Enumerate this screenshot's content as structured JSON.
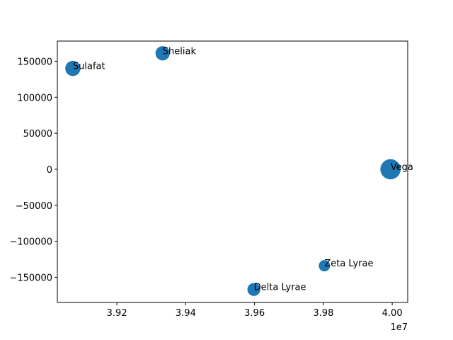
{
  "chart_data": {
    "type": "scatter",
    "title": "",
    "xlabel": "",
    "ylabel": "",
    "x_offset_label": "1e7",
    "xlim": [
      39027000,
      40045000
    ],
    "ylim": [
      -185000,
      178000
    ],
    "x_ticks": [
      39200000,
      39400000,
      39600000,
      39800000,
      40000000
    ],
    "x_tick_labels": [
      "3.92",
      "3.94",
      "3.96",
      "3.98",
      "4.00"
    ],
    "y_ticks": [
      -150000,
      -100000,
      -50000,
      0,
      50000,
      100000,
      150000
    ],
    "y_tick_labels": [
      "−150000",
      "−100000",
      "−50000",
      "0",
      "50000",
      "100000",
      "150000"
    ],
    "grid": false,
    "color": "#1f77b4",
    "points": [
      {
        "label": "Vega",
        "x": 39995000,
        "y": 0,
        "size": 3.2
      },
      {
        "label": "Sheliak",
        "x": 39333000,
        "y": 161000,
        "size": 1.6
      },
      {
        "label": "Sulafat",
        "x": 39072000,
        "y": 140000,
        "size": 1.8
      },
      {
        "label": "Delta Lyrae",
        "x": 39598000,
        "y": -167000,
        "size": 1.3
      },
      {
        "label": "Zeta Lyrae",
        "x": 39803000,
        "y": -134000,
        "size": 1.0
      }
    ]
  }
}
